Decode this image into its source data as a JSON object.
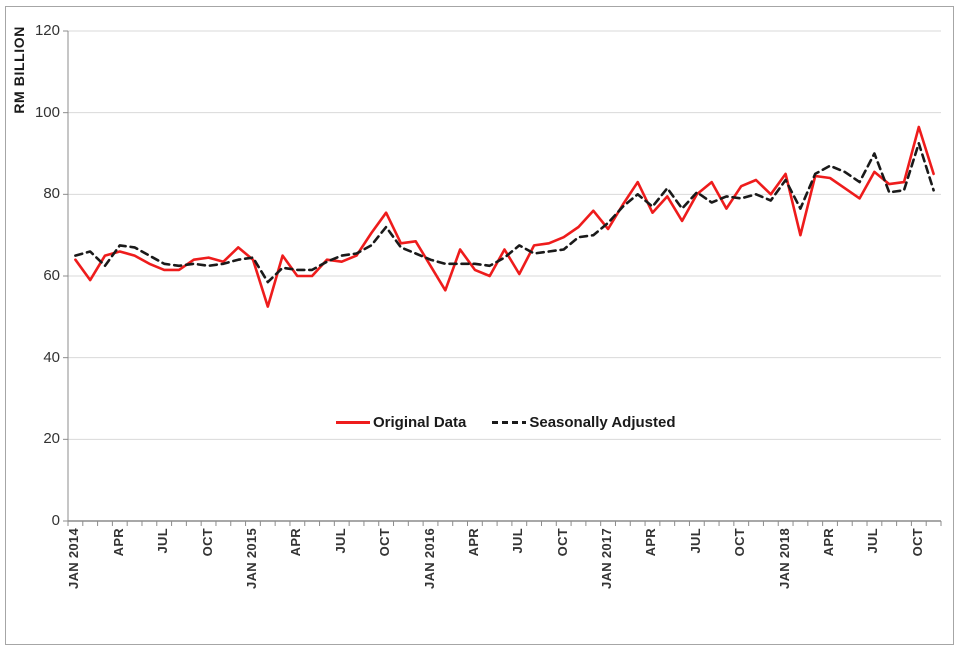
{
  "chart_data": {
    "type": "line",
    "title": "",
    "ylabel": "RM BILLION",
    "xlabel": "",
    "ylim": [
      0,
      120
    ],
    "yticks": [
      0,
      20,
      40,
      60,
      80,
      100,
      120
    ],
    "grid": "horizontal",
    "legend_position": "center-inside",
    "x_frequency": "monthly",
    "x_range": "JAN 2014 - NOV 2018",
    "x_tick_labels": [
      "JAN 2014",
      "APR",
      "JUL",
      "OCT",
      "JAN 2015",
      "APR",
      "JUL",
      "OCT",
      "JAN 2016",
      "APR",
      "JUL",
      "OCT",
      "JAN 2017",
      "APR",
      "JUL",
      "OCT",
      "JAN 2018",
      "APR",
      "JUL",
      "OCT"
    ],
    "x_tick_label_every_months": 3,
    "series": [
      {
        "name": "Original Data",
        "color": "#ee1c1c",
        "line_style": "solid",
        "values": [
          64,
          59,
          65,
          66,
          65,
          63,
          61.5,
          61.5,
          64,
          64.5,
          63.5,
          67,
          64,
          52.5,
          65,
          60,
          60,
          64,
          63.5,
          65,
          70.5,
          75.5,
          68,
          68.5,
          62.5,
          56.5,
          66.5,
          61.5,
          60,
          66.5,
          60.5,
          67.5,
          68,
          69.5,
          72,
          76,
          71.5,
          77.5,
          83,
          75.5,
          79.5,
          73.5,
          80,
          83,
          76.5,
          82,
          83.5,
          80,
          85,
          70,
          84.5,
          84,
          81.5,
          79,
          85.5,
          82.5,
          83,
          96.5,
          85
        ]
      },
      {
        "name": "Seasonally Adjusted",
        "color": "#1a1a1a",
        "line_style": "dashed",
        "values": [
          65,
          66,
          62.5,
          67.5,
          67,
          65,
          63,
          62.5,
          63,
          62.5,
          63,
          64,
          64.5,
          58.5,
          62,
          61.5,
          61.5,
          63.5,
          65,
          65.5,
          67.5,
          72,
          67,
          65.5,
          64,
          63,
          63,
          63,
          62.5,
          64.5,
          67.5,
          65.5,
          66,
          66.5,
          69.5,
          70,
          73,
          77,
          80,
          77,
          81.5,
          76.5,
          80.5,
          78,
          79.5,
          79,
          80,
          78.5,
          83.5,
          76.5,
          85,
          87,
          85.5,
          83,
          90,
          80.5,
          81,
          92.5,
          81
        ]
      }
    ]
  },
  "colors": {
    "background": "#ffffff",
    "frame_border": "#a6a6a6",
    "gridline": "#d9d9d9",
    "axis": "#8c8c8c",
    "tick_text": "#333333"
  }
}
